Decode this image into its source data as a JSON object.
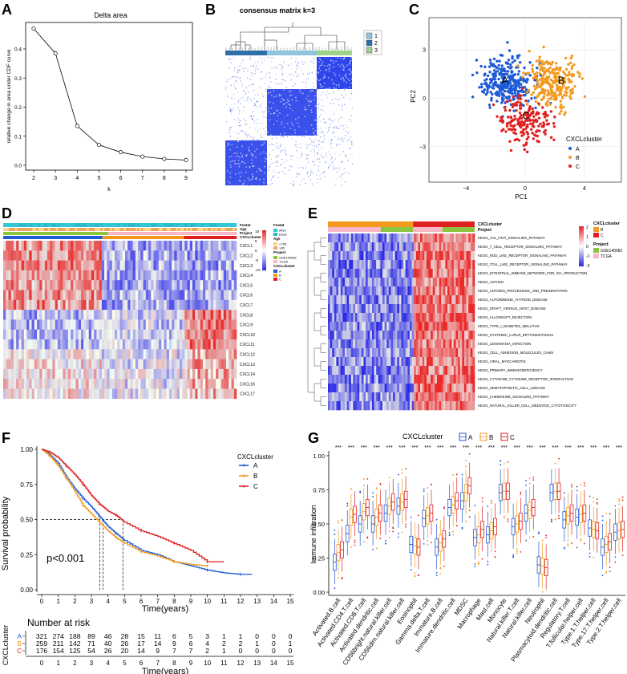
{
  "colors": {
    "A": "#1f5bd6",
    "B": "#f39a1e",
    "C": "#e02020",
    "heat_high": "#e8252b",
    "heat_low": "#2222dd",
    "teal": "#33c7d6",
    "gse": "#8bc53f",
    "tcga": "#f7b7c7"
  },
  "panel_letters": [
    "A",
    "B",
    "C",
    "D",
    "E",
    "F",
    "G"
  ],
  "chart_data": [
    {
      "panel": "A",
      "type": "line",
      "title": "Delta area",
      "xlabel": "k",
      "ylabel": "relative change in area under CDF curve",
      "x": [
        2,
        3,
        4,
        5,
        6,
        7,
        8,
        9
      ],
      "y": [
        0.47,
        0.385,
        0.135,
        0.07,
        0.045,
        0.03,
        0.022,
        0.018
      ],
      "xlim": [
        2,
        9
      ],
      "ylim": [
        0,
        0.48
      ],
      "xticks": [
        "2",
        "3",
        "4",
        "5",
        "6",
        "7",
        "8",
        "9"
      ],
      "yticks": [
        "0.0",
        "0.1",
        "0.2",
        "0.3",
        "0.4"
      ]
    },
    {
      "panel": "B",
      "type": "heatmap",
      "title": "consensus matrix k=3",
      "legend": [
        "1",
        "2",
        "3"
      ],
      "legend_colors": [
        "#8fc3de",
        "#2e6fa8",
        "#9dd28a"
      ],
      "clusters": [
        "1",
        "2",
        "3"
      ]
    },
    {
      "panel": "C",
      "type": "scatter",
      "xlabel": "PC1",
      "ylabel": "PC2",
      "xticks": [
        "-4",
        "0",
        "4"
      ],
      "yticks": [
        "-3",
        "0",
        "3"
      ],
      "xlim": [
        -6.5,
        6.5
      ],
      "ylim": [
        -5.2,
        5
      ],
      "legend_title": "CXCLcluster",
      "clusters": [
        {
          "name": "A",
          "center": [
            -1.2,
            1.0
          ],
          "label_pos": [
            -1.6,
            0.9
          ]
        },
        {
          "name": "B",
          "center": [
            2.0,
            1.0
          ],
          "label_pos": [
            2.2,
            0.9
          ]
        },
        {
          "name": "C",
          "center": [
            0.0,
            -1.5
          ],
          "label_pos": [
            -0.2,
            -1.3
          ]
        }
      ]
    },
    {
      "panel": "D",
      "type": "heatmap",
      "rows": [
        "CXCL1",
        "CXCL2",
        "CXCL3",
        "CXCL4",
        "CXCL5",
        "CXCL6",
        "CXCL7",
        "CXCL8",
        "CXCL9",
        "CXCL10",
        "CXCL11",
        "CXCL12",
        "CXCL13",
        "CXCL14",
        "CXCL16",
        "CXCL17"
      ],
      "annotation_tracks": [
        "Fustat",
        "Age",
        "Project",
        "CXCLcluster"
      ],
      "legend": {
        "scale_ticks": [
          "10",
          "5",
          "0",
          "-5",
          "-10"
        ],
        "Fustat": [
          "Alive",
          "Dead"
        ],
        "Age": [
          "<=65",
          ">65"
        ],
        "Project": [
          "GSE140082",
          "TCGA"
        ],
        "CXCLcluster": [
          "A",
          "B",
          "C"
        ]
      }
    },
    {
      "panel": "E",
      "type": "heatmap",
      "rows": [
        "KEGG_JAK_STAT_SIGNALING_PATHWAY",
        "KEGG_T_CELL_RECEPTOR_SIGNALING_PATHWAY",
        "KEGG_NOD_LIKE_RECEPTOR_SIGNALING_PATHWAY",
        "KEGG_TOLL_LIKE_RECEPTOR_SIGNALING_PATHWAY",
        "KEGG_INTESTINAL_IMMUNE_NETWORK_FOR_IGA_PRODUCTION",
        "KEGG_ASTHMA",
        "KEGG_ANTIGEN_PROCESSING_AND_PRESENTATION",
        "KEGG_AUTOIMMUNE_THYROID_DISEASE",
        "KEGG_GRAFT_VERSUS_HOST_DISEASE",
        "KEGG_ALLOGRAFT_REJECTION",
        "KEGG_TYPE_I_DIABETES_MELLITUS",
        "KEGG_SYSTEMIC_LUPUS_ERYTHEMATOSUS",
        "KEGG_LEISHMANIA_INFECTION",
        "KEGG_CELL_ADHESION_MOLECULES_CAMS",
        "KEGG_VIRAL_MYOCARDITIS",
        "KEGG_PRIMARY_IMMUNODEFICIENCY",
        "KEGG_CYTOKINE_CYTOKINE_RECEPTOR_INTERACTION",
        "KEGG_HEMATOPOIETIC_CELL_LINEAGE",
        "KEGG_CHEMOKINE_SIGNALING_PATHWAY",
        "KEGG_NATURAL_KILLER_CELL_MEDIATED_CYTOTOXICITY"
      ],
      "annotation_tracks": [
        "CXCLcluster",
        "Project"
      ],
      "legend": {
        "scale_ticks": [
          "2",
          "1",
          "0",
          "-1",
          "-2"
        ],
        "CXCLcluster": [
          "B",
          "C"
        ],
        "Project": [
          "GSE140082",
          "TCGA"
        ]
      }
    },
    {
      "panel": "F",
      "type": "line",
      "xlabel": "Time(years)",
      "ylabel": "Survival probability",
      "pvalue": "p<0.001",
      "legend_title": "CXCLcluster",
      "xticks": [
        "0",
        "1",
        "2",
        "3",
        "4",
        "5",
        "6",
        "7",
        "8",
        "9",
        "10",
        "11",
        "12",
        "13",
        "14",
        "15"
      ],
      "yticks": [
        "0.00",
        "0.25",
        "0.50",
        "0.75",
        "1.00"
      ],
      "xlim": [
        0,
        15
      ],
      "ylim": [
        0,
        1
      ],
      "medians": {
        "A": 3.7,
        "B": 3.5,
        "C": 4.9
      },
      "series": [
        {
          "name": "A",
          "x": [
            0,
            0.5,
            1,
            1.5,
            2,
            2.5,
            3,
            3.5,
            4,
            4.5,
            5,
            6,
            7,
            8,
            9,
            10,
            11,
            12,
            12.7
          ],
          "y": [
            1,
            0.96,
            0.9,
            0.8,
            0.72,
            0.65,
            0.59,
            0.52,
            0.45,
            0.4,
            0.35,
            0.28,
            0.25,
            0.2,
            0.17,
            0.14,
            0.12,
            0.11,
            0.11
          ]
        },
        {
          "name": "B",
          "x": [
            0,
            0.5,
            1,
            1.5,
            2,
            2.5,
            3,
            3.5,
            4,
            4.5,
            5,
            6,
            7,
            8,
            9,
            10
          ],
          "y": [
            1,
            0.95,
            0.88,
            0.79,
            0.7,
            0.6,
            0.54,
            0.48,
            0.42,
            0.37,
            0.33,
            0.27,
            0.24,
            0.2,
            0.18,
            0.17
          ]
        },
        {
          "name": "C",
          "x": [
            0,
            0.5,
            1,
            1.5,
            2,
            2.5,
            3,
            3.5,
            4,
            4.5,
            5,
            6,
            7,
            8,
            9,
            10,
            11
          ],
          "y": [
            1,
            0.98,
            0.94,
            0.88,
            0.82,
            0.75,
            0.67,
            0.61,
            0.56,
            0.53,
            0.48,
            0.42,
            0.38,
            0.33,
            0.28,
            0.2,
            0.2
          ]
        }
      ],
      "risk_table": {
        "title": "Number at risk",
        "ylabel": "CXCLcluster",
        "rows": [
          {
            "name": "A",
            "values": [
              321,
              274,
              188,
              89,
              46,
              28,
              15,
              11,
              6,
              5,
              3,
              1,
              1,
              0,
              0,
              0
            ]
          },
          {
            "name": "B",
            "values": [
              259,
              211,
              142,
              71,
              40,
              26,
              17,
              14,
              9,
              6,
              4,
              2,
              2,
              1,
              0,
              1
            ]
          },
          {
            "name": "C",
            "values": [
              176,
              154,
              125,
              54,
              26,
              20,
              14,
              9,
              7,
              7,
              2,
              1,
              0,
              0,
              0,
              0
            ]
          }
        ]
      }
    },
    {
      "panel": "G",
      "type": "box",
      "ylabel": "Immune infiltration",
      "legend_title": "CXCLcluster",
      "groups": [
        "A",
        "B",
        "C"
      ],
      "yticks": [
        "0.00",
        "0.25",
        "0.50",
        "0.75",
        "1.00"
      ],
      "ylim": [
        0,
        1
      ],
      "significance": "***",
      "categories": [
        "Activated.B.cell",
        "Activated.CD4.T.cell",
        "Activated.CD8.T.cell",
        "Activated.dendritic.cell",
        "CD56bright.natural.killer.cell",
        "CD56dim.natural.killer.cell",
        "Eosinophil",
        "Gamma.delta.T.cell",
        "Immature.B.cell",
        "Immature.dendritic.cell",
        "MDSC",
        "Macrophage",
        "Mast.cell",
        "Monocyte",
        "Natural.killer.T.cell",
        "Natural.killer.cell",
        "Neutrophil",
        "Plasmacytoid.dendritic.cell",
        "Regulatory.T.cell",
        "T.follicular.helper.cell",
        "Type.1.T.helper.cell",
        "Type.17.T.helper.cell",
        "Type.2.T.helper.cell"
      ],
      "medians": [
        [
          0.22,
          0.29,
          0.31
        ],
        [
          0.43,
          0.55,
          0.57
        ],
        [
          0.5,
          0.59,
          0.62
        ],
        [
          0.5,
          0.55,
          0.58
        ],
        [
          0.58,
          0.63,
          0.66
        ],
        [
          0.63,
          0.66,
          0.68
        ],
        [
          0.35,
          0.34,
          0.33
        ],
        [
          0.54,
          0.56,
          0.58
        ],
        [
          0.33,
          0.36,
          0.39
        ],
        [
          0.62,
          0.64,
          0.67
        ],
        [
          0.67,
          0.73,
          0.78
        ],
        [
          0.4,
          0.42,
          0.46
        ],
        [
          0.42,
          0.45,
          0.48
        ],
        [
          0.73,
          0.74,
          0.74
        ],
        [
          0.48,
          0.5,
          0.52
        ],
        [
          0.58,
          0.6,
          0.62
        ],
        [
          0.2,
          0.19,
          0.18
        ],
        [
          0.73,
          0.74,
          0.74
        ],
        [
          0.53,
          0.56,
          0.58
        ],
        [
          0.55,
          0.57,
          0.58
        ],
        [
          0.47,
          0.46,
          0.45
        ],
        [
          0.33,
          0.35,
          0.37
        ],
        [
          0.44,
          0.45,
          0.46
        ]
      ]
    }
  ]
}
